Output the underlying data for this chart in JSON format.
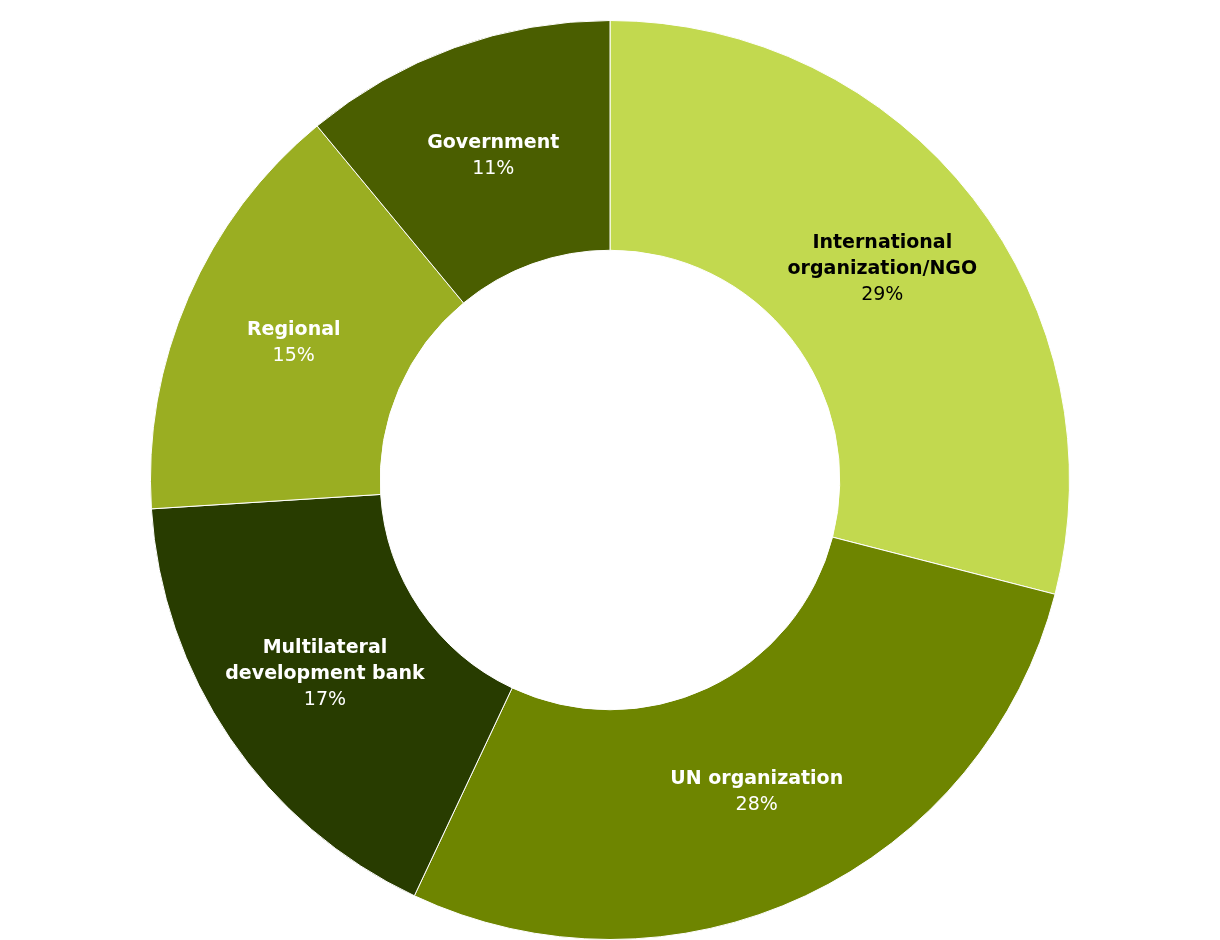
{
  "chart_data": {
    "type": "donut",
    "categories": [
      "International organization/NGO",
      "UN organization",
      "Multilateral development bank",
      "Regional",
      "Government"
    ],
    "values": [
      29,
      28,
      17,
      15,
      11
    ],
    "colors": [
      "#c2d94f",
      "#6e8500",
      "#283c00",
      "#9aae22",
      "#4a5e00"
    ],
    "value_labels": [
      "29%",
      "28%",
      "17%",
      "15%",
      "11%"
    ]
  }
}
